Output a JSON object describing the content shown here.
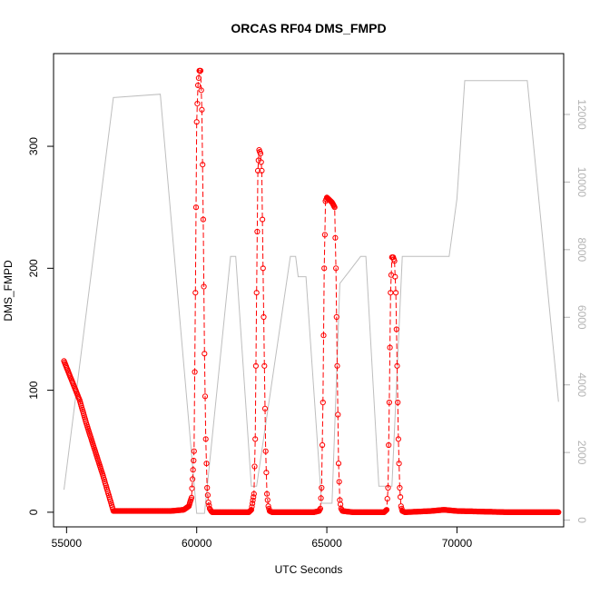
{
  "chart_data": {
    "type": "line",
    "title": "ORCAS RF04 DMS_FMPD",
    "xlabel": "UTC Seconds",
    "ylabel": "DMS_FMPD",
    "ylabel_right": "",
    "xlim": [
      54500,
      74100
    ],
    "ylim": [
      -12,
      376
    ],
    "ylim_right": [
      -200,
      13800
    ],
    "x_ticks": [
      55000,
      60000,
      65000,
      70000
    ],
    "x_tick_labels": [
      "55000",
      "60000",
      "65000",
      "70000"
    ],
    "y_ticks": [
      0,
      100,
      200,
      300
    ],
    "y_tick_labels": [
      "0",
      "100",
      "200",
      "300"
    ],
    "y_ticks_right": [
      0,
      2000,
      4000,
      6000,
      8000,
      10000,
      12000
    ],
    "y_tick_labels_right": [
      "0",
      "2000",
      "4000",
      "6000",
      "8000",
      "10000",
      "12000"
    ],
    "grid": false,
    "legend": "none",
    "colors": {
      "dms": "#ff0000",
      "altitude": "#bebebe",
      "axis": "#000000",
      "right_axis": "#b3b3b3"
    },
    "series": [
      {
        "axis": "left",
        "style": "points-and-lines",
        "color": "#ff0000",
        "x": [
          54900,
          55200,
          55500,
          55800,
          56100,
          56400,
          56800,
          57000,
          58000,
          58500,
          59000,
          59500,
          59700,
          59800,
          59900,
          59950,
          60000,
          60050,
          60100,
          60150,
          60200,
          60250,
          60300,
          60350,
          60400,
          60450,
          60500,
          60550,
          60600,
          60700,
          61000,
          61500,
          62000,
          62100,
          62200,
          62250,
          62300,
          62350,
          62400,
          62450,
          62500,
          62550,
          62600,
          62650,
          62700,
          62750,
          62800,
          62900,
          63000,
          64000,
          64500,
          64700,
          64750,
          64800,
          64850,
          64900,
          64950,
          65000,
          65100,
          65200,
          65300,
          65350,
          65400,
          65450,
          65500,
          65550,
          65600,
          66000,
          67000,
          67200,
          67300,
          67350,
          67400,
          67450,
          67500,
          67550,
          67600,
          67650,
          67700,
          67750,
          67800,
          67850,
          67900,
          68000,
          69000,
          69500,
          70000,
          72000,
          73900
        ],
        "y": [
          124,
          108,
          92,
          70,
          50,
          30,
          1,
          1,
          1,
          1,
          1,
          2,
          5,
          12,
          50,
          180,
          320,
          350,
          362,
          362,
          330,
          240,
          130,
          60,
          20,
          8,
          3,
          1,
          0,
          0,
          0,
          0,
          0,
          2,
          15,
          60,
          180,
          280,
          297,
          294,
          280,
          200,
          120,
          50,
          15,
          5,
          1,
          0,
          0,
          0,
          0,
          1,
          3,
          20,
          90,
          200,
          255,
          258,
          256,
          254,
          250,
          200,
          120,
          40,
          10,
          3,
          1,
          0,
          0,
          0,
          2,
          20,
          90,
          180,
          209,
          209,
          206,
          180,
          120,
          60,
          20,
          5,
          1,
          0,
          1,
          2,
          1,
          0,
          0
        ]
      },
      {
        "axis": "right",
        "style": "line",
        "color": "#bebebe",
        "x": [
          54900,
          56800,
          58600,
          60000,
          60100,
          60300,
          61300,
          61500,
          62100,
          62300,
          63600,
          63800,
          63900,
          64200,
          64800,
          65000,
          65200,
          65500,
          66300,
          66500,
          67000,
          67200,
          67500,
          67900,
          68500,
          69600,
          69700,
          70000,
          70300,
          72700,
          73900
        ],
        "y": [
          900,
          12500,
          12600,
          200,
          200,
          200,
          7800,
          7800,
          1000,
          1000,
          7800,
          7800,
          7200,
          7200,
          500,
          500,
          500,
          7000,
          7800,
          7800,
          1000,
          1000,
          1000,
          7800,
          7800,
          7800,
          7800,
          9500,
          13000,
          13000,
          3500
        ]
      }
    ]
  }
}
